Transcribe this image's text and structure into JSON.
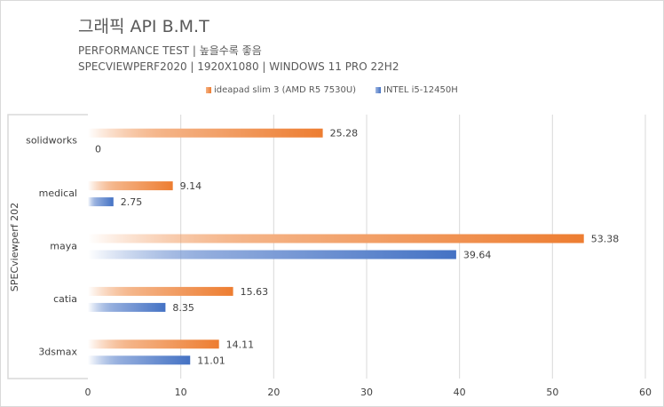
{
  "chart_data": {
    "type": "bar",
    "title": "그래픽 API B.M.T",
    "subtitle1": "PERFORMANCE TEST | 높을수록 좋음",
    "subtitle2": "SPECVIEWPERF2020 | 1920X1080 | WINDOWS 11 PRO 22H2",
    "ylabel": "SPECviewperf 202",
    "xlabel": "",
    "categories": [
      "solidworks",
      "medical",
      "maya",
      "catia",
      "3dsmax"
    ],
    "series": [
      {
        "name": "ideapad slim 3 (AMD R5 7530U)",
        "color": "#ed7d31",
        "values": [
          25.28,
          9.14,
          53.38,
          15.63,
          14.11
        ]
      },
      {
        "name": "INTEL i5-12450H",
        "color": "#4472c4",
        "values": [
          0,
          2.75,
          39.64,
          8.35,
          11.01
        ]
      }
    ],
    "xlim": [
      0,
      60
    ],
    "xticks": [
      "0",
      "10",
      "20",
      "30",
      "40",
      "50",
      "60"
    ],
    "grid": true,
    "legend": "top"
  }
}
